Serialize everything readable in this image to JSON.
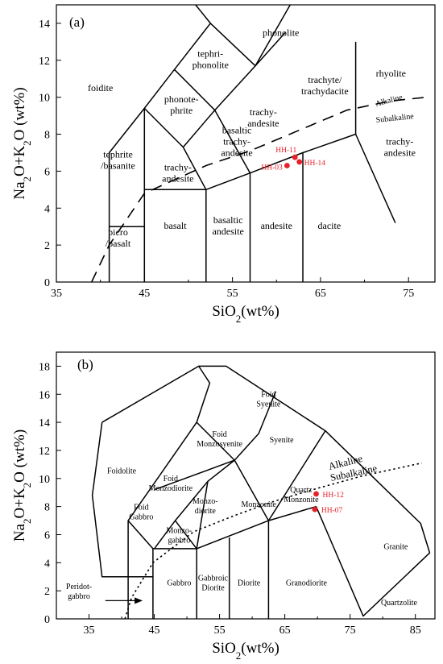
{
  "chart_data": [
    {
      "type": "scatter",
      "panel_label": "(a)",
      "xlabel": "SiO₂(wt%)",
      "ylabel": "Na₂O+K₂O (wt%)",
      "xlim": [
        35,
        78
      ],
      "ylim": [
        0,
        15
      ],
      "xticks": [
        35,
        45,
        55,
        65,
        75
      ],
      "yticks": [
        0,
        2,
        4,
        6,
        8,
        10,
        12,
        14
      ],
      "point_color": "#e8202a",
      "points": [
        {
          "name": "HH-11",
          "x": 62.1,
          "y": 6.75
        },
        {
          "name": "HH-14",
          "x": 62.6,
          "y": 6.5
        },
        {
          "name": "HH-03",
          "x": 61.2,
          "y": 6.3
        }
      ],
      "divider_labels": [
        "Alkaline",
        "Subalkaline"
      ],
      "fields": [
        {
          "label": "foidite"
        },
        {
          "label": "phonolite"
        },
        {
          "label": "tephri-\nphonolite"
        },
        {
          "label": "phonote-\nphrite"
        },
        {
          "label": "tephrite\n/basanite"
        },
        {
          "label": "trachy-\nandesite"
        },
        {
          "label": "basaltic\ntrachy-\nandesite"
        },
        {
          "label": "trachy-\nandesite"
        },
        {
          "label": "trachyte/\ntrachydacite"
        },
        {
          "label": "rhyolite"
        },
        {
          "label": "trachy-\nandesite"
        },
        {
          "label": "picro\n/basalt"
        },
        {
          "label": "basalt"
        },
        {
          "label": "basaltic\nandesite"
        },
        {
          "label": "andesite"
        },
        {
          "label": "dacite"
        }
      ]
    },
    {
      "type": "scatter",
      "panel_label": "(b)",
      "xlabel": "SiO₂(wt%)",
      "ylabel": "Na₂O+K₂O (wt%)",
      "xlim": [
        30,
        88
      ],
      "ylim": [
        0,
        19
      ],
      "xticks": [
        35,
        45,
        55,
        65,
        75,
        85
      ],
      "yticks": [
        0,
        2,
        4,
        6,
        8,
        10,
        12,
        14,
        16,
        18
      ],
      "point_color": "#e8202a",
      "points": [
        {
          "name": "HH-12",
          "x": 69.8,
          "y": 8.9
        },
        {
          "name": "HH-07",
          "x": 69.6,
          "y": 7.8
        }
      ],
      "divider_labels": [
        "Alkaline",
        "Subalkaline"
      ],
      "annotation": "Peridot-\ngabbro",
      "fields": [
        {
          "label": "Foid\nSyenite"
        },
        {
          "label": "Syenite"
        },
        {
          "label": "Foidolite"
        },
        {
          "label": "Foid\nMonzosyenite"
        },
        {
          "label": "Foid\nMonzodiorite"
        },
        {
          "label": "Quartz\nMonzonite"
        },
        {
          "label": "Monzonite"
        },
        {
          "label": "Foid\nGabbro"
        },
        {
          "label": "Monzo-\ndiorite"
        },
        {
          "label": "Monzo-\ngabbro"
        },
        {
          "label": "Gabbro"
        },
        {
          "label": "Gabbroic\nDiorite"
        },
        {
          "label": "Diorite"
        },
        {
          "label": "Granodiorite"
        },
        {
          "label": "Granite"
        },
        {
          "label": "Quartzolite"
        }
      ]
    }
  ]
}
